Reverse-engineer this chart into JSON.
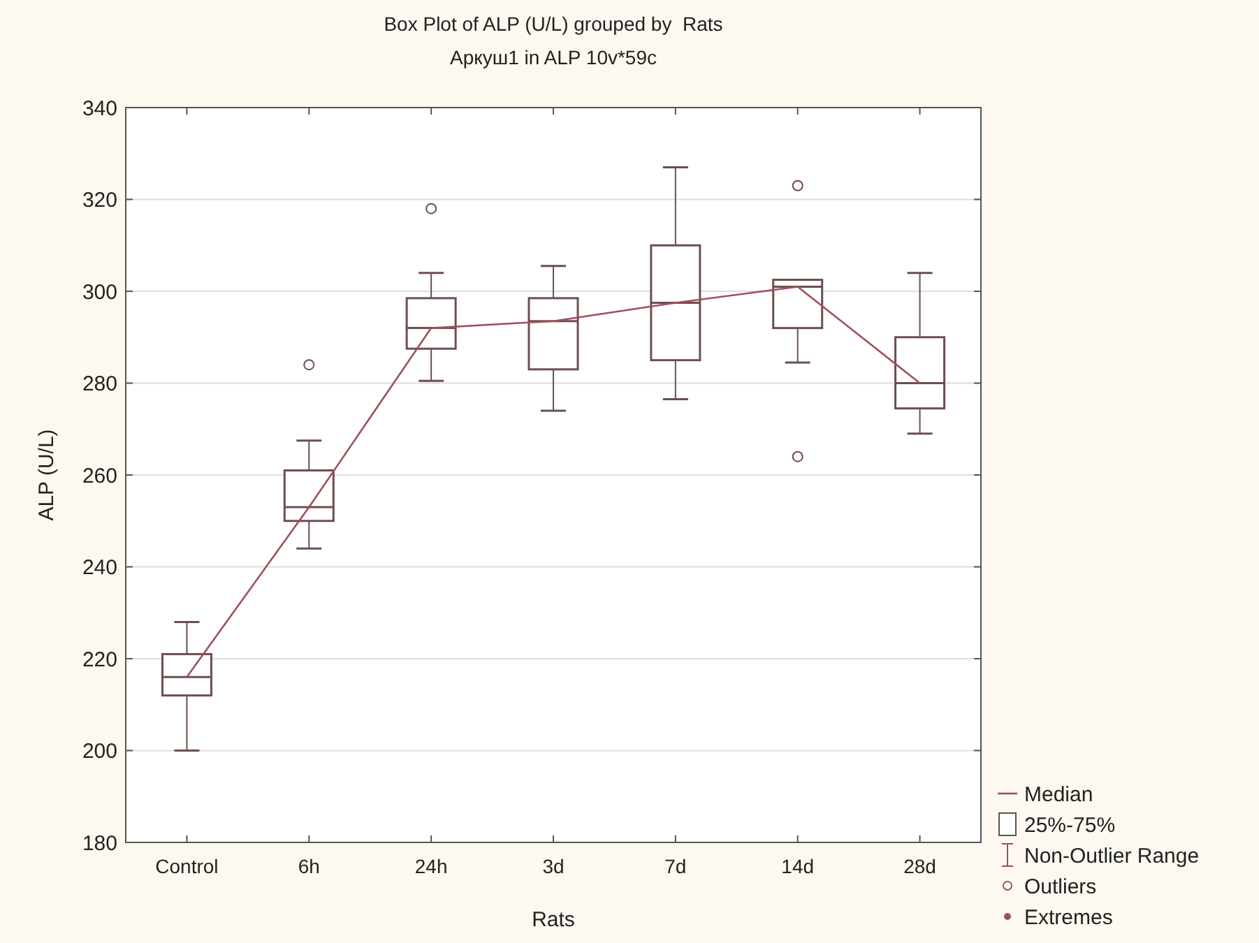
{
  "chart_data": {
    "type": "box",
    "title": "Box Plot of ALP (U/L) grouped by  Rats",
    "subtitle": "Аркуш1 in ALP 10v*59c",
    "xlabel": "Rats",
    "ylabel": "ALP (U/L)",
    "categories": [
      "Control",
      "6h",
      "24h",
      "3d",
      "7d",
      "14d",
      "28d"
    ],
    "ylim": [
      180,
      340
    ],
    "yticks": [
      180,
      200,
      220,
      240,
      260,
      280,
      300,
      320,
      340
    ],
    "grid": "y",
    "series": [
      {
        "color": "#6e4e4e",
        "boxes": [
          {
            "low": 200,
            "q1": 212,
            "median": 216,
            "q3": 221,
            "high": 228
          },
          {
            "low": 244,
            "q1": 250,
            "median": 253,
            "q3": 261,
            "high": 267.5,
            "outliers": [
              284
            ]
          },
          {
            "low": 280.5,
            "q1": 287.5,
            "median": 292,
            "q3": 298.5,
            "high": 304,
            "outliers": [
              318
            ]
          },
          {
            "low": 274,
            "q1": 283,
            "median": 293.5,
            "q3": 298.5,
            "high": 305.5
          },
          {
            "low": 276.5,
            "q1": 285,
            "median": 297.5,
            "q3": 310,
            "high": 327
          },
          {
            "low": 284.5,
            "q1": 292,
            "median": 301,
            "q3": 302.5,
            "high": 302.5,
            "outliers": [
              323,
              264
            ]
          },
          {
            "low": 269,
            "q1": 274.5,
            "median": 280,
            "q3": 290,
            "high": 304
          }
        ]
      },
      {
        "type": "line",
        "color": "#a0505a",
        "values": [
          216,
          253,
          292,
          293.5,
          297.5,
          301,
          280
        ]
      }
    ],
    "annotations": [
      "Median",
      "25%-75%",
      "Non-Outlier Range",
      "Outliers",
      "Extremes"
    ]
  }
}
